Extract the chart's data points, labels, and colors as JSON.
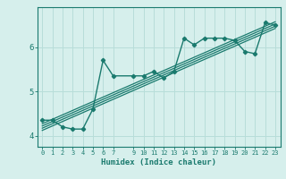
{
  "xlabel": "Humidex (Indice chaleur)",
  "bg_color": "#d6efec",
  "grid_color": "#b8ddd9",
  "line_color": "#1a7a6e",
  "main_x": [
    0,
    1,
    2,
    3,
    4,
    5,
    6,
    7,
    9,
    10,
    11,
    12,
    13,
    14,
    15,
    16,
    17,
    18,
    19,
    20,
    21,
    22,
    23
  ],
  "main_y": [
    4.35,
    4.35,
    4.2,
    4.15,
    4.15,
    4.6,
    5.7,
    5.35,
    5.35,
    5.35,
    5.45,
    5.3,
    5.45,
    6.2,
    6.05,
    6.2,
    6.2,
    6.2,
    6.15,
    5.9,
    5.85,
    6.55,
    6.5
  ],
  "reg_lines": [
    {
      "x": [
        0,
        23
      ],
      "y": [
        4.12,
        6.42
      ]
    },
    {
      "x": [
        0,
        23
      ],
      "y": [
        4.17,
        6.47
      ]
    },
    {
      "x": [
        0,
        23
      ],
      "y": [
        4.22,
        6.52
      ]
    },
    {
      "x": [
        0,
        23
      ],
      "y": [
        4.27,
        6.57
      ]
    }
  ],
  "xlim": [
    -0.5,
    23.5
  ],
  "ylim": [
    3.75,
    6.9
  ],
  "yticks": [
    4,
    5,
    6
  ],
  "xticks": [
    0,
    1,
    2,
    3,
    4,
    5,
    6,
    7,
    9,
    10,
    11,
    12,
    13,
    14,
    15,
    16,
    17,
    18,
    19,
    20,
    21,
    22,
    23
  ]
}
